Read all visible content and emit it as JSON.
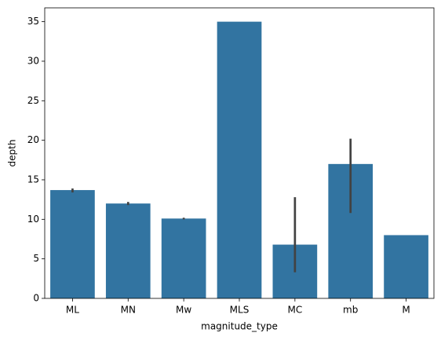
{
  "chart_data": {
    "type": "bar",
    "x_label": "magnitude_type",
    "y_label": "depth",
    "categories": [
      "ML",
      "MN",
      "Mw",
      "MLS",
      "MC",
      "mb",
      "M"
    ],
    "values": [
      13.7,
      12.0,
      10.1,
      35.0,
      6.8,
      17.0,
      8.0
    ],
    "ci_low": [
      13.4,
      11.8,
      10.0,
      null,
      3.3,
      10.8,
      null
    ],
    "ci_high": [
      13.9,
      12.2,
      10.2,
      null,
      12.8,
      20.2,
      null
    ],
    "color": "#3274a1",
    "error_color": "#424242",
    "ylim": [
      0,
      36.75
    ],
    "yticks": [
      0,
      5,
      10,
      15,
      20,
      25,
      30,
      35
    ],
    "grid": false
  }
}
